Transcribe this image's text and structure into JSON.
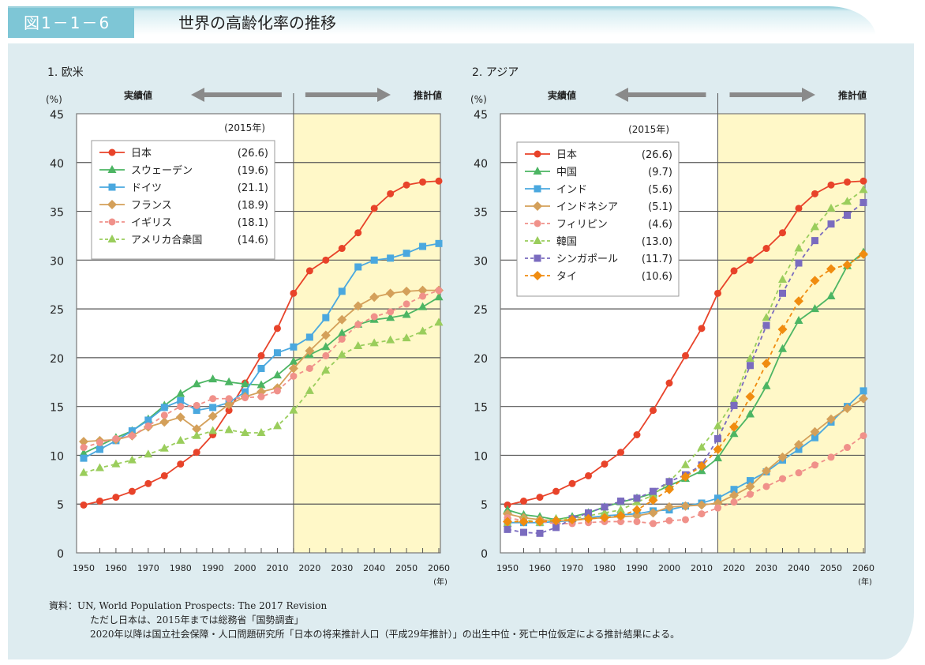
{
  "figure_number": "図1－1－6",
  "figure_title": "世界の高齢化率の推移",
  "source": {
    "line1": "資料：UN, World Population Prospects: The 2017 Revision",
    "line2": "ただし日本は、2015年までは総務省「国勢調査」",
    "line3": "2020年以降は国立社会保障・人口問題研究所「日本の将来推計人口（平成29年推計）」の出生中位・死亡中位仮定による推計結果による。"
  },
  "colors": {
    "japan": "#e8432a",
    "green": "#4cb563",
    "blue": "#4aa8df",
    "tan": "#d4a05a",
    "pink": "#f0918a",
    "lightgreen": "#9acd5c",
    "purple": "#7a6bbf",
    "orange": "#f08c10",
    "projection_bg": "#fff8c8"
  },
  "chart_data": [
    {
      "type": "line",
      "title": "1. 欧米",
      "ylabel": "(%)",
      "xlabel": "(年)",
      "actual_label": "実績値",
      "projection_label": "推計値",
      "legend_year": "(2015年)",
      "ylim": [
        0,
        45
      ],
      "yticks": [
        "0",
        "5",
        "10",
        "15",
        "20",
        "25",
        "30",
        "35",
        "40",
        "45"
      ],
      "xticks": [
        "1950",
        "1960",
        "1970",
        "1980",
        "1990",
        "2000",
        "2010",
        "2020",
        "2030",
        "2040",
        "2050",
        "2060"
      ],
      "x": [
        1950,
        1955,
        1960,
        1965,
        1970,
        1975,
        1980,
        1985,
        1990,
        1995,
        2000,
        2005,
        2010,
        2015,
        2020,
        2025,
        2030,
        2035,
        2040,
        2045,
        2050,
        2055,
        2060
      ],
      "series": [
        {
          "name": "日本",
          "value_2015": "(26.6)",
          "color": "#e8432a",
          "marker": "circle",
          "dash": false,
          "values": [
            4.9,
            5.3,
            5.7,
            6.3,
            7.1,
            7.9,
            9.1,
            10.3,
            12.1,
            14.6,
            17.4,
            20.2,
            23.0,
            26.6,
            28.9,
            30.0,
            31.2,
            32.8,
            35.3,
            36.8,
            37.7,
            38.0,
            38.1
          ]
        },
        {
          "name": "スウェーデン",
          "value_2015": "(19.6)",
          "color": "#4cb563",
          "marker": "triangle",
          "dash": false,
          "values": [
            10.2,
            11.0,
            11.8,
            12.5,
            13.7,
            15.1,
            16.3,
            17.3,
            17.8,
            17.5,
            17.3,
            17.2,
            18.2,
            19.6,
            20.3,
            21.1,
            22.5,
            23.4,
            23.9,
            24.1,
            24.4,
            25.2,
            26.2
          ]
        },
        {
          "name": "ドイツ",
          "value_2015": "(21.1)",
          "color": "#4aa8df",
          "marker": "square",
          "dash": false,
          "values": [
            9.7,
            10.6,
            11.5,
            12.5,
            13.6,
            14.9,
            15.6,
            14.6,
            14.9,
            15.4,
            16.5,
            18.9,
            20.5,
            21.1,
            22.1,
            24.1,
            26.8,
            29.3,
            30.0,
            30.2,
            30.7,
            31.4,
            31.7
          ]
        },
        {
          "name": "フランス",
          "value_2015": "(18.9)",
          "color": "#d4a05a",
          "marker": "diamond",
          "dash": false,
          "values": [
            11.4,
            11.5,
            11.6,
            12.0,
            12.9,
            13.4,
            13.9,
            12.7,
            14.0,
            15.2,
            16.0,
            16.5,
            16.9,
            18.9,
            20.7,
            22.3,
            23.9,
            25.3,
            26.2,
            26.6,
            26.8,
            26.9,
            26.9
          ]
        },
        {
          "name": "イギリス",
          "value_2015": "(18.1)",
          "color": "#f0918a",
          "marker": "circle",
          "dash": true,
          "values": [
            10.8,
            11.3,
            11.7,
            12.0,
            13.0,
            14.1,
            15.0,
            15.1,
            15.8,
            15.8,
            15.9,
            16.0,
            16.6,
            18.1,
            18.9,
            20.2,
            21.9,
            23.4,
            24.2,
            24.7,
            25.5,
            26.3,
            26.9
          ]
        },
        {
          "name": "アメリカ合衆国",
          "value_2015": "(14.6)",
          "color": "#9acd5c",
          "marker": "triangle",
          "dash": true,
          "values": [
            8.2,
            8.7,
            9.1,
            9.5,
            10.1,
            10.7,
            11.5,
            12.0,
            12.5,
            12.6,
            12.3,
            12.3,
            13.0,
            14.6,
            16.6,
            18.7,
            20.3,
            21.2,
            21.5,
            21.8,
            22.0,
            22.7,
            23.6
          ]
        }
      ]
    },
    {
      "type": "line",
      "title": "2. アジア",
      "ylabel": "(%)",
      "xlabel": "(年)",
      "actual_label": "実績値",
      "projection_label": "推計値",
      "legend_year": "(2015年)",
      "ylim": [
        0,
        45
      ],
      "yticks": [
        "0",
        "5",
        "10",
        "15",
        "20",
        "25",
        "30",
        "35",
        "40",
        "45"
      ],
      "xticks": [
        "1950",
        "1960",
        "1970",
        "1980",
        "1990",
        "2000",
        "2010",
        "2020",
        "2030",
        "2040",
        "2050",
        "2060"
      ],
      "x": [
        1950,
        1955,
        1960,
        1965,
        1970,
        1975,
        1980,
        1985,
        1990,
        1995,
        2000,
        2005,
        2010,
        2015,
        2020,
        2025,
        2030,
        2035,
        2040,
        2045,
        2050,
        2055,
        2060
      ],
      "series": [
        {
          "name": "日本",
          "value_2015": "(26.6)",
          "color": "#e8432a",
          "marker": "circle",
          "dash": false,
          "values": [
            4.9,
            5.3,
            5.7,
            6.3,
            7.1,
            7.9,
            9.1,
            10.3,
            12.1,
            14.6,
            17.4,
            20.2,
            23.0,
            26.6,
            28.9,
            30.0,
            31.2,
            32.8,
            35.3,
            36.8,
            37.7,
            38.0,
            38.1
          ]
        },
        {
          "name": "中国",
          "value_2015": "(9.7)",
          "color": "#4cb563",
          "marker": "triangle",
          "dash": false,
          "values": [
            4.4,
            3.9,
            3.7,
            3.4,
            3.7,
            4.1,
            4.7,
            5.2,
            5.6,
            6.1,
            6.9,
            7.6,
            8.4,
            9.7,
            12.2,
            14.2,
            17.1,
            20.9,
            23.8,
            25.0,
            26.3,
            29.4,
            30.8
          ]
        },
        {
          "name": "インド",
          "value_2015": "(5.6)",
          "color": "#4aa8df",
          "marker": "square",
          "dash": false,
          "values": [
            3.1,
            3.1,
            3.1,
            3.2,
            3.3,
            3.6,
            3.8,
            3.9,
            4.0,
            4.3,
            4.4,
            4.8,
            5.1,
            5.6,
            6.5,
            7.4,
            8.3,
            9.5,
            10.6,
            11.8,
            13.4,
            15.0,
            16.6
          ]
        },
        {
          "name": "インドネシア",
          "value_2015": "(5.1)",
          "color": "#d4a05a",
          "marker": "diamond",
          "dash": false,
          "values": [
            4.0,
            3.6,
            3.4,
            3.3,
            3.3,
            3.5,
            3.6,
            3.7,
            3.8,
            4.1,
            4.7,
            4.8,
            4.9,
            5.1,
            5.9,
            6.8,
            8.4,
            9.8,
            11.1,
            12.4,
            13.7,
            14.8,
            15.8
          ]
        },
        {
          "name": "フィリピン",
          "value_2015": "(4.6)",
          "color": "#f0918a",
          "marker": "circle",
          "dash": true,
          "values": [
            3.6,
            3.3,
            3.2,
            3.0,
            3.0,
            3.1,
            3.2,
            3.2,
            3.2,
            3.0,
            3.3,
            3.4,
            4.0,
            4.6,
            5.2,
            6.0,
            6.8,
            7.6,
            8.2,
            9.0,
            9.8,
            10.8,
            12.0
          ]
        },
        {
          "name": "韓国",
          "value_2015": "(13.0)",
          "color": "#9acd5c",
          "marker": "triangle",
          "dash": true,
          "values": [
            3.0,
            3.4,
            3.1,
            3.5,
            3.5,
            3.8,
            4.1,
            4.4,
            5.2,
            5.9,
            7.3,
            9.0,
            10.8,
            13.0,
            15.6,
            19.9,
            24.1,
            28.0,
            31.2,
            33.4,
            35.3,
            36.0,
            37.2
          ]
        },
        {
          "name": "シンガポール",
          "value_2015": "(11.7)",
          "color": "#7a6bbf",
          "marker": "square",
          "dash": true,
          "values": [
            2.4,
            2.1,
            2.0,
            2.6,
            3.5,
            4.1,
            4.7,
            5.3,
            5.6,
            6.3,
            7.3,
            8.0,
            9.0,
            11.7,
            15.1,
            19.2,
            23.3,
            26.6,
            29.7,
            32.0,
            33.7,
            34.6,
            35.9
          ]
        },
        {
          "name": "タイ",
          "value_2015": "(10.6)",
          "color": "#f08c10",
          "marker": "diamond",
          "dash": true,
          "values": [
            3.2,
            3.2,
            3.2,
            3.3,
            3.4,
            3.5,
            3.6,
            3.8,
            4.4,
            5.4,
            6.5,
            7.8,
            8.9,
            10.6,
            12.9,
            16.0,
            19.4,
            22.9,
            25.8,
            27.9,
            29.1,
            29.5,
            30.6
          ]
        }
      ]
    }
  ]
}
